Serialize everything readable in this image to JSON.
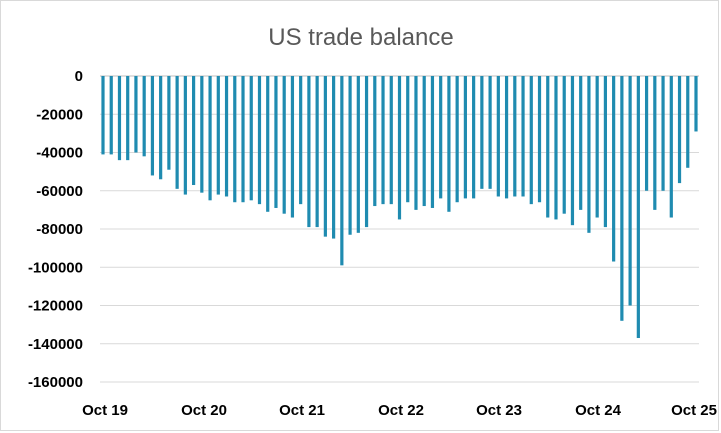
{
  "chart_data": {
    "type": "bar",
    "title": "US trade balance",
    "xlabel": "",
    "ylabel": "",
    "ylim": [
      -160000,
      0
    ],
    "yticks": [
      0,
      -20000,
      -40000,
      -60000,
      -80000,
      -100000,
      -120000,
      -140000,
      -160000
    ],
    "xtick_labels": [
      "Oct 19",
      "Oct 20",
      "Oct 21",
      "Oct 22",
      "Oct 23",
      "Oct 24",
      "Oct 25"
    ],
    "grid": true,
    "bar_color": "#1f8bb0",
    "categories": [
      "Oct 19",
      "Nov 19",
      "Dec 19",
      "Jan 20",
      "Feb 20",
      "Mar 20",
      "Apr 20",
      "May 20",
      "Jun 20",
      "Jul 20",
      "Aug 20",
      "Sep 20",
      "Oct 20",
      "Nov 20",
      "Dec 20",
      "Jan 21",
      "Feb 21",
      "Mar 21",
      "Apr 21",
      "May 21",
      "Jun 21",
      "Jul 21",
      "Aug 21",
      "Sep 21",
      "Oct 21",
      "Nov 21",
      "Dec 21",
      "Jan 22",
      "Feb 22",
      "Mar 22",
      "Apr 22",
      "May 22",
      "Jun 22",
      "Jul 22",
      "Aug 22",
      "Sep 22",
      "Oct 22",
      "Nov 22",
      "Dec 22",
      "Jan 23",
      "Feb 23",
      "Mar 23",
      "Apr 23",
      "May 23",
      "Jun 23",
      "Jul 23",
      "Aug 23",
      "Sep 23",
      "Oct 23",
      "Nov 23",
      "Dec 23",
      "Jan 24",
      "Feb 24",
      "Mar 24",
      "Apr 24",
      "May 24",
      "Jun 24",
      "Jul 24",
      "Aug 24",
      "Sep 24",
      "Oct 24",
      "Nov 24",
      "Dec 24",
      "Jan 25",
      "Feb 25",
      "Mar 25",
      "Apr 25",
      "May 25",
      "Jun 25",
      "Jul 25",
      "Aug 25",
      "Sep 25",
      "Oct 25"
    ],
    "values": [
      -41000,
      -41000,
      -44000,
      -44000,
      -40000,
      -42000,
      -52000,
      -54000,
      -49000,
      -59000,
      -62000,
      -57000,
      -61000,
      -65000,
      -62000,
      -63000,
      -66000,
      -66000,
      -65000,
      -67000,
      -71000,
      -69000,
      -72000,
      -74000,
      -67000,
      -79000,
      -79000,
      -84000,
      -85000,
      -99000,
      -83000,
      -82000,
      -79000,
      -68000,
      -67000,
      -67000,
      -75000,
      -66000,
      -70000,
      -68000,
      -69000,
      -64000,
      -71000,
      -66000,
      -64000,
      -64000,
      -59000,
      -59000,
      -63000,
      -64000,
      -63000,
      -63000,
      -67000,
      -66000,
      -74000,
      -75000,
      -72000,
      -78000,
      -70000,
      -82000,
      -74000,
      -79000,
      -97000,
      -128000,
      -120000,
      -137000,
      -60000,
      -70000,
      -60000,
      -74000,
      -56000,
      -48000,
      -29000
    ]
  }
}
